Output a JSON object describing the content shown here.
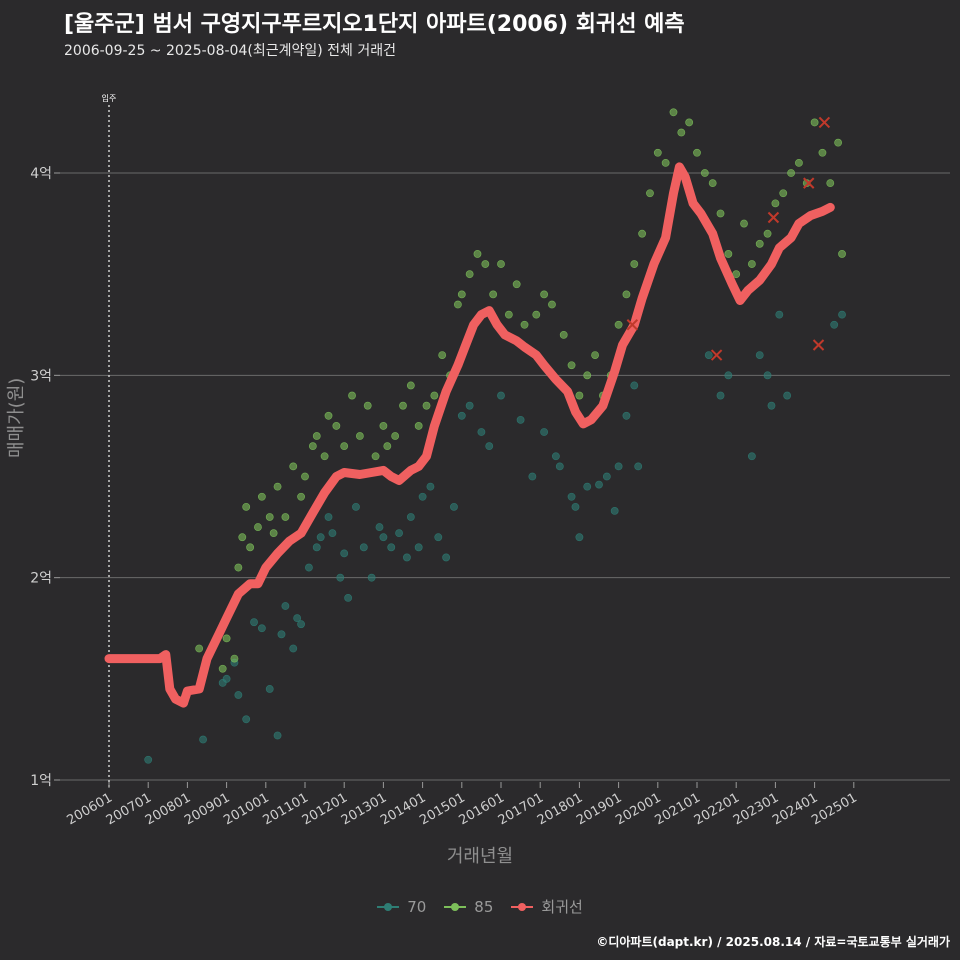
{
  "header": {
    "title": "[울주군] 범서 구영지구푸르지오1단지 아파트(2006) 회귀선 예측",
    "subtitle": "2006-09-25 ~ 2025-08-04(최근계약일) 전체 거래건"
  },
  "caption": "©디아파트(dapt.kr) / 2025.08.14 / 자료=국토교통부 실거래가",
  "colors": {
    "background": "#2b2a2c",
    "grid": "#6a6a6a",
    "series_70": "#2e7d74",
    "series_85": "#7dbf5a",
    "regression": "#f06060",
    "cancel_marker": "#c0392b"
  },
  "chart_data": {
    "type": "scatter",
    "xlabel": "거래년월",
    "ylabel": "매매가(원)",
    "ylim": [
      1.0,
      4.4
    ],
    "yticks": [
      {
        "v": 1,
        "label": "1억"
      },
      {
        "v": 2,
        "label": "2억"
      },
      {
        "v": 3,
        "label": "3억"
      },
      {
        "v": 4,
        "label": "4억"
      }
    ],
    "xticks": [
      "200601",
      "200701",
      "200801",
      "200901",
      "201001",
      "201101",
      "201201",
      "201301",
      "201401",
      "201501",
      "201601",
      "201701",
      "201801",
      "201901",
      "202001",
      "202101",
      "202201",
      "202301",
      "202401",
      "202501"
    ],
    "annotation": {
      "label": "입주",
      "year": 2006.0
    },
    "legend": [
      "70",
      "85",
      "회귀선"
    ],
    "regression": {
      "name": "회귀선",
      "points": [
        [
          2006.0,
          1.6
        ],
        [
          2007.3,
          1.6
        ],
        [
          2007.45,
          1.62
        ],
        [
          2007.55,
          1.45
        ],
        [
          2007.7,
          1.4
        ],
        [
          2007.9,
          1.38
        ],
        [
          2008.0,
          1.44
        ],
        [
          2008.3,
          1.45
        ],
        [
          2008.5,
          1.6
        ],
        [
          2008.8,
          1.72
        ],
        [
          2009.0,
          1.8
        ],
        [
          2009.3,
          1.92
        ],
        [
          2009.6,
          1.97
        ],
        [
          2009.8,
          1.97
        ],
        [
          2010.0,
          2.05
        ],
        [
          2010.3,
          2.12
        ],
        [
          2010.6,
          2.18
        ],
        [
          2010.9,
          2.22
        ],
        [
          2011.2,
          2.32
        ],
        [
          2011.5,
          2.42
        ],
        [
          2011.8,
          2.5
        ],
        [
          2012.0,
          2.52
        ],
        [
          2012.4,
          2.51
        ],
        [
          2012.7,
          2.52
        ],
        [
          2013.0,
          2.53
        ],
        [
          2013.2,
          2.5
        ],
        [
          2013.4,
          2.48
        ],
        [
          2013.7,
          2.53
        ],
        [
          2013.9,
          2.55
        ],
        [
          2014.1,
          2.6
        ],
        [
          2014.3,
          2.75
        ],
        [
          2014.6,
          2.92
        ],
        [
          2014.9,
          3.05
        ],
        [
          2015.1,
          3.15
        ],
        [
          2015.3,
          3.25
        ],
        [
          2015.5,
          3.3
        ],
        [
          2015.7,
          3.32
        ],
        [
          2015.9,
          3.25
        ],
        [
          2016.1,
          3.2
        ],
        [
          2016.4,
          3.17
        ],
        [
          2016.6,
          3.14
        ],
        [
          2016.9,
          3.1
        ],
        [
          2017.1,
          3.05
        ],
        [
          2017.4,
          2.98
        ],
        [
          2017.7,
          2.92
        ],
        [
          2017.9,
          2.82
        ],
        [
          2018.1,
          2.76
        ],
        [
          2018.3,
          2.78
        ],
        [
          2018.6,
          2.85
        ],
        [
          2018.9,
          3.02
        ],
        [
          2019.1,
          3.15
        ],
        [
          2019.4,
          3.25
        ],
        [
          2019.6,
          3.38
        ],
        [
          2019.9,
          3.55
        ],
        [
          2020.2,
          3.68
        ],
        [
          2020.4,
          3.9
        ],
        [
          2020.55,
          4.03
        ],
        [
          2020.7,
          3.98
        ],
        [
          2020.9,
          3.85
        ],
        [
          2021.1,
          3.8
        ],
        [
          2021.4,
          3.7
        ],
        [
          2021.6,
          3.58
        ],
        [
          2021.9,
          3.45
        ],
        [
          2022.1,
          3.37
        ],
        [
          2022.3,
          3.42
        ],
        [
          2022.6,
          3.47
        ],
        [
          2022.9,
          3.55
        ],
        [
          2023.1,
          3.63
        ],
        [
          2023.4,
          3.68
        ],
        [
          2023.6,
          3.75
        ],
        [
          2023.9,
          3.79
        ],
        [
          2024.2,
          3.81
        ],
        [
          2024.4,
          3.83
        ]
      ]
    },
    "series": [
      {
        "name": "70",
        "points": [
          [
            2007.0,
            1.1
          ],
          [
            2008.4,
            1.2
          ],
          [
            2008.9,
            1.48
          ],
          [
            2009.0,
            1.5
          ],
          [
            2009.2,
            1.58
          ],
          [
            2009.3,
            1.42
          ],
          [
            2009.5,
            1.3
          ],
          [
            2009.7,
            1.78
          ],
          [
            2009.9,
            1.75
          ],
          [
            2010.1,
            1.45
          ],
          [
            2010.3,
            1.22
          ],
          [
            2010.4,
            1.72
          ],
          [
            2010.5,
            1.86
          ],
          [
            2010.7,
            1.65
          ],
          [
            2010.8,
            1.8
          ],
          [
            2010.9,
            1.77
          ],
          [
            2011.1,
            2.05
          ],
          [
            2011.3,
            2.15
          ],
          [
            2011.4,
            2.2
          ],
          [
            2011.6,
            2.3
          ],
          [
            2011.7,
            2.22
          ],
          [
            2011.9,
            2.0
          ],
          [
            2012.0,
            2.12
          ],
          [
            2012.1,
            1.9
          ],
          [
            2012.3,
            2.35
          ],
          [
            2012.5,
            2.15
          ],
          [
            2012.7,
            2.0
          ],
          [
            2012.9,
            2.25
          ],
          [
            2013.0,
            2.2
          ],
          [
            2013.2,
            2.15
          ],
          [
            2013.4,
            2.22
          ],
          [
            2013.6,
            2.1
          ],
          [
            2013.7,
            2.3
          ],
          [
            2013.9,
            2.15
          ],
          [
            2014.0,
            2.4
          ],
          [
            2014.2,
            2.45
          ],
          [
            2014.4,
            2.2
          ],
          [
            2014.6,
            2.1
          ],
          [
            2014.8,
            2.35
          ],
          [
            2015.0,
            2.8
          ],
          [
            2015.2,
            2.85
          ],
          [
            2015.5,
            2.72
          ],
          [
            2015.7,
            2.65
          ],
          [
            2016.0,
            2.9
          ],
          [
            2016.5,
            2.78
          ],
          [
            2016.8,
            2.5
          ],
          [
            2017.1,
            2.72
          ],
          [
            2017.4,
            2.6
          ],
          [
            2017.5,
            2.55
          ],
          [
            2017.8,
            2.4
          ],
          [
            2017.9,
            2.35
          ],
          [
            2018.0,
            2.2
          ],
          [
            2018.2,
            2.45
          ],
          [
            2018.5,
            2.46
          ],
          [
            2018.7,
            2.5
          ],
          [
            2018.9,
            2.33
          ],
          [
            2019.0,
            2.55
          ],
          [
            2019.2,
            2.8
          ],
          [
            2019.4,
            2.95
          ],
          [
            2019.5,
            2.55
          ],
          [
            2021.3,
            3.1
          ],
          [
            2021.6,
            2.9
          ],
          [
            2021.8,
            3.0
          ],
          [
            2022.4,
            2.6
          ],
          [
            2022.6,
            3.1
          ],
          [
            2022.8,
            3.0
          ],
          [
            2022.9,
            2.85
          ],
          [
            2023.1,
            3.3
          ],
          [
            2023.3,
            2.9
          ],
          [
            2024.5,
            3.25
          ],
          [
            2024.7,
            3.3
          ]
        ]
      },
      {
        "name": "85",
        "points": [
          [
            2008.3,
            1.65
          ],
          [
            2008.9,
            1.55
          ],
          [
            2009.0,
            1.7
          ],
          [
            2009.2,
            1.6
          ],
          [
            2009.3,
            2.05
          ],
          [
            2009.4,
            2.2
          ],
          [
            2009.5,
            2.35
          ],
          [
            2009.6,
            2.15
          ],
          [
            2009.8,
            2.25
          ],
          [
            2009.9,
            2.4
          ],
          [
            2010.1,
            2.3
          ],
          [
            2010.2,
            2.22
          ],
          [
            2010.3,
            2.45
          ],
          [
            2010.5,
            2.3
          ],
          [
            2010.7,
            2.55
          ],
          [
            2010.9,
            2.4
          ],
          [
            2011.0,
            2.5
          ],
          [
            2011.2,
            2.65
          ],
          [
            2011.3,
            2.7
          ],
          [
            2011.5,
            2.6
          ],
          [
            2011.6,
            2.8
          ],
          [
            2011.8,
            2.75
          ],
          [
            2012.0,
            2.65
          ],
          [
            2012.2,
            2.9
          ],
          [
            2012.4,
            2.7
          ],
          [
            2012.6,
            2.85
          ],
          [
            2012.8,
            2.6
          ],
          [
            2013.0,
            2.75
          ],
          [
            2013.1,
            2.65
          ],
          [
            2013.3,
            2.7
          ],
          [
            2013.5,
            2.85
          ],
          [
            2013.7,
            2.95
          ],
          [
            2013.9,
            2.75
          ],
          [
            2014.1,
            2.85
          ],
          [
            2014.3,
            2.9
          ],
          [
            2014.5,
            3.1
          ],
          [
            2014.7,
            3.0
          ],
          [
            2014.9,
            3.35
          ],
          [
            2015.0,
            3.4
          ],
          [
            2015.2,
            3.5
          ],
          [
            2015.4,
            3.6
          ],
          [
            2015.6,
            3.55
          ],
          [
            2015.8,
            3.4
          ],
          [
            2016.0,
            3.55
          ],
          [
            2016.2,
            3.3
          ],
          [
            2016.4,
            3.45
          ],
          [
            2016.6,
            3.25
          ],
          [
            2016.9,
            3.3
          ],
          [
            2017.1,
            3.4
          ],
          [
            2017.3,
            3.35
          ],
          [
            2017.6,
            3.2
          ],
          [
            2017.8,
            3.05
          ],
          [
            2018.0,
            2.9
          ],
          [
            2018.2,
            3.0
          ],
          [
            2018.4,
            3.1
          ],
          [
            2018.6,
            2.9
          ],
          [
            2018.8,
            3.0
          ],
          [
            2019.0,
            3.25
          ],
          [
            2019.2,
            3.4
          ],
          [
            2019.4,
            3.55
          ],
          [
            2019.6,
            3.7
          ],
          [
            2019.8,
            3.9
          ],
          [
            2020.0,
            4.1
          ],
          [
            2020.2,
            4.05
          ],
          [
            2020.4,
            4.3
          ],
          [
            2020.6,
            4.2
          ],
          [
            2020.8,
            4.25
          ],
          [
            2021.0,
            4.1
          ],
          [
            2021.2,
            4.0
          ],
          [
            2021.4,
            3.95
          ],
          [
            2021.6,
            3.8
          ],
          [
            2021.8,
            3.6
          ],
          [
            2022.0,
            3.5
          ],
          [
            2022.2,
            3.75
          ],
          [
            2022.4,
            3.55
          ],
          [
            2022.6,
            3.65
          ],
          [
            2022.8,
            3.7
          ],
          [
            2023.0,
            3.85
          ],
          [
            2023.2,
            3.9
          ],
          [
            2023.4,
            4.0
          ],
          [
            2023.6,
            4.05
          ],
          [
            2023.8,
            3.95
          ],
          [
            2024.0,
            4.25
          ],
          [
            2024.2,
            4.1
          ],
          [
            2024.4,
            3.95
          ],
          [
            2024.6,
            4.15
          ],
          [
            2024.7,
            3.6
          ]
        ]
      }
    ],
    "cancelled_trades": [
      [
        2019.35,
        3.25
      ],
      [
        2021.5,
        3.1
      ],
      [
        2022.95,
        3.78
      ],
      [
        2023.85,
        3.95
      ],
      [
        2024.1,
        3.15
      ],
      [
        2024.25,
        4.25
      ]
    ]
  }
}
